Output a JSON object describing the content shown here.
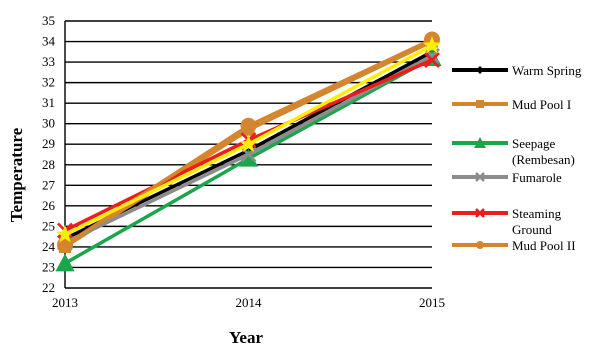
{
  "chart_data": {
    "type": "line",
    "title": "",
    "xlabel": "Year",
    "ylabel": "Temperature",
    "x": [
      "2013",
      "2014",
      "2015"
    ],
    "ylim": [
      22,
      35
    ],
    "yticks": [
      22,
      23,
      24,
      25,
      26,
      27,
      28,
      29,
      30,
      31,
      32,
      33,
      34,
      35
    ],
    "grid": "horizontal",
    "legend_position": "right",
    "series": [
      {
        "name": "Warm Spring",
        "values": [
          24.4,
          28.7,
          33.5
        ],
        "color": "#000000",
        "marker": "diamond"
      },
      {
        "name": "Mud Pool I",
        "values": [
          24.0,
          29.7,
          34.0
        ],
        "color": "#d4862e",
        "marker": "square"
      },
      {
        "name": "Seepage (Rembesan)",
        "legend_lines": [
          "Seepage",
          "(Rembesan)"
        ],
        "values": [
          23.2,
          28.3,
          33.2
        ],
        "color": "#1aa64a",
        "marker": "triangle"
      },
      {
        "name": "Fumarole",
        "values": [
          24.2,
          28.5,
          33.3
        ],
        "color": "#8c8c8c",
        "marker": "x"
      },
      {
        "name": "Steaming Ground",
        "legend_lines": [
          "Steaming",
          "Ground"
        ],
        "values": [
          24.8,
          29.2,
          33.1
        ],
        "color": "#ee1c1c",
        "marker": "x"
      },
      {
        "name": "Mud Pool II",
        "values": [
          24.1,
          29.9,
          34.1
        ],
        "color": "#d4862e",
        "marker": "circle"
      },
      {
        "name": "",
        "values": [
          24.6,
          29.0,
          33.8
        ],
        "color": "#ffee00",
        "marker": "star"
      }
    ]
  }
}
